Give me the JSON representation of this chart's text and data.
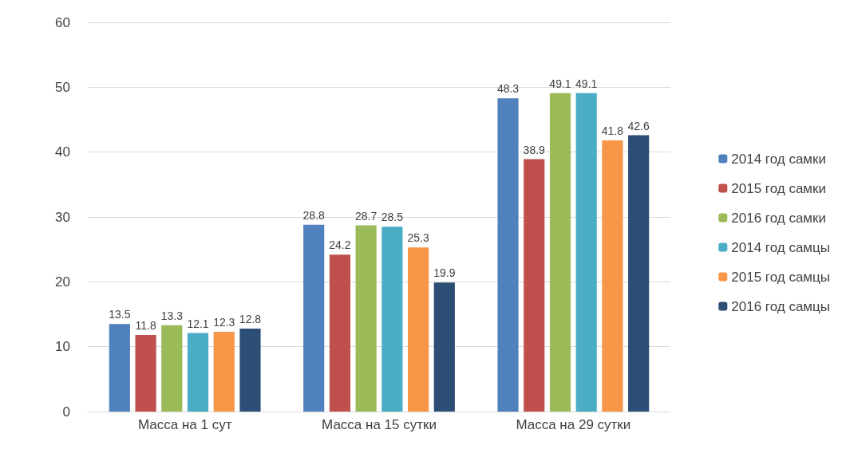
{
  "chart_data": {
    "type": "bar",
    "categories": [
      "Масса на 1 сут",
      "Масса на 15 сутки",
      "Масса на 29 сутки"
    ],
    "series": [
      {
        "name": "2014 год самки",
        "color": "#4f81bd",
        "values": [
          13.5,
          28.8,
          48.3
        ]
      },
      {
        "name": "2015 год самки",
        "color": "#c0504d",
        "values": [
          11.8,
          24.2,
          38.9
        ]
      },
      {
        "name": "2016 год самки",
        "color": "#9bbb59",
        "values": [
          13.3,
          28.7,
          49.1
        ]
      },
      {
        "name": "2014 год самцы",
        "color": "#4bacc6",
        "values": [
          12.1,
          28.5,
          49.1
        ]
      },
      {
        "name": "2015 год самцы",
        "color": "#f79646",
        "values": [
          12.3,
          25.3,
          41.8
        ]
      },
      {
        "name": "2016 год самцы",
        "color": "#2c4d75",
        "values": [
          12.8,
          19.9,
          42.6
        ]
      }
    ],
    "ylim": [
      0,
      60
    ],
    "yticks": [
      0,
      10,
      20,
      30,
      40,
      50,
      60
    ],
    "grid": "y",
    "legend": "right",
    "data_labels": true
  }
}
